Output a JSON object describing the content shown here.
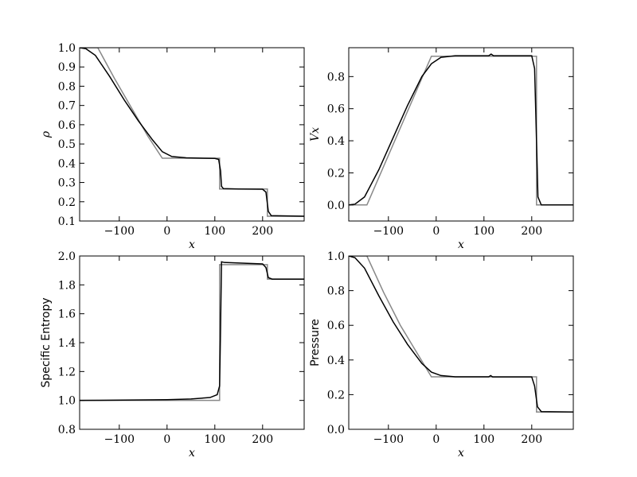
{
  "chart_data": [
    {
      "type": "line",
      "xlabel": "x",
      "ylabel": "ρ",
      "xlim": [
        -183,
        287
      ],
      "ylim": [
        0.1,
        1.0
      ],
      "xticks": [
        {
          "value": -100,
          "label": "−100"
        },
        0,
        100,
        200
      ],
      "yticks": [
        0.1,
        0.2,
        0.3,
        0.4,
        0.5,
        0.6,
        0.7,
        0.8,
        0.9,
        {
          "value": 1,
          "label": "1.0"
        }
      ],
      "series": [
        {
          "color": "#888888",
          "x": [
            -183,
            -145,
            -110,
            -75,
            -40,
            -10,
            110,
            110,
            210,
            210,
            287
          ],
          "values": [
            1,
            1,
            0.84,
            0.69,
            0.54,
            0.426,
            0.426,
            0.266,
            0.266,
            0.125,
            0.125
          ]
        },
        {
          "color": "#000000",
          "x": [
            -183,
            -170,
            -150,
            -120,
            -90,
            -60,
            -30,
            -10,
            10,
            40,
            100,
            108,
            112,
            114,
            118,
            150,
            200,
            207,
            212,
            218,
            287
          ],
          "values": [
            1,
            0.995,
            0.96,
            0.85,
            0.73,
            0.62,
            0.52,
            0.46,
            0.435,
            0.428,
            0.425,
            0.42,
            0.36,
            0.28,
            0.268,
            0.266,
            0.265,
            0.25,
            0.15,
            0.128,
            0.125
          ]
        }
      ]
    },
    {
      "type": "line",
      "xlabel": "x",
      "ylabel": "Vx",
      "xlim": [
        -183,
        287
      ],
      "ylim": [
        -0.1,
        0.98
      ],
      "xticks": [
        {
          "value": -100,
          "label": "−100"
        },
        0,
        100,
        200
      ],
      "yticks": [
        {
          "value": 0,
          "label": "0.0"
        },
        0.2,
        0.4,
        0.6,
        0.8
      ],
      "series": [
        {
          "color": "#888888",
          "x": [
            -183,
            -145,
            -10,
            210,
            210,
            287
          ],
          "values": [
            0,
            0,
            0.927,
            0.927,
            0,
            0
          ]
        },
        {
          "color": "#000000",
          "x": [
            -183,
            -170,
            -150,
            -120,
            -90,
            -60,
            -30,
            -10,
            10,
            40,
            110,
            115,
            120,
            200,
            206,
            210,
            213,
            220,
            287
          ],
          "values": [
            0,
            0.005,
            0.05,
            0.22,
            0.42,
            0.62,
            0.8,
            0.88,
            0.92,
            0.93,
            0.93,
            0.94,
            0.93,
            0.93,
            0.85,
            0.4,
            0.05,
            0,
            0
          ]
        }
      ]
    },
    {
      "type": "line",
      "xlabel": "x",
      "ylabel": "Specific Entropy",
      "xlim": [
        -183,
        287
      ],
      "ylim": [
        0.8,
        2.0
      ],
      "xticks": [
        {
          "value": -100,
          "label": "−100"
        },
        0,
        100,
        200
      ],
      "yticks": [
        0.8,
        {
          "value": 1,
          "label": "1.0"
        },
        1.2,
        1.4,
        1.6,
        1.8,
        {
          "value": 2,
          "label": "2.0"
        }
      ],
      "series": [
        {
          "color": "#888888",
          "x": [
            -183,
            110,
            110,
            210,
            210,
            287
          ],
          "values": [
            1.0,
            1.0,
            1.94,
            1.94,
            1.84,
            1.84
          ]
        },
        {
          "color": "#000000",
          "x": [
            -183,
            0,
            50,
            90,
            105,
            110,
            112,
            114,
            120,
            200,
            207,
            212,
            220,
            287
          ],
          "values": [
            1.0,
            1.005,
            1.01,
            1.02,
            1.04,
            1.1,
            1.5,
            1.96,
            1.955,
            1.945,
            1.92,
            1.85,
            1.84,
            1.84
          ]
        }
      ]
    },
    {
      "type": "line",
      "xlabel": "x",
      "ylabel": "Pressure",
      "xlim": [
        -183,
        287
      ],
      "ylim": [
        0,
        1.0
      ],
      "xticks": [
        {
          "value": -100,
          "label": "−100"
        },
        0,
        100,
        200
      ],
      "yticks": [
        {
          "value": 0,
          "label": "0.0"
        },
        0.2,
        0.4,
        0.6,
        0.8,
        {
          "value": 1,
          "label": "1.0"
        }
      ],
      "series": [
        {
          "color": "#888888",
          "x": [
            -183,
            -145,
            -110,
            -75,
            -40,
            -10,
            210,
            210,
            287
          ],
          "values": [
            1,
            1,
            0.79,
            0.6,
            0.44,
            0.303,
            0.303,
            0.1,
            0.1
          ]
        },
        {
          "color": "#000000",
          "x": [
            -183,
            -170,
            -150,
            -120,
            -90,
            -60,
            -30,
            -10,
            10,
            40,
            110,
            114,
            118,
            200,
            206,
            212,
            220,
            287
          ],
          "values": [
            1,
            0.99,
            0.93,
            0.77,
            0.62,
            0.49,
            0.38,
            0.33,
            0.31,
            0.303,
            0.303,
            0.31,
            0.302,
            0.302,
            0.25,
            0.13,
            0.102,
            0.1
          ]
        }
      ]
    }
  ]
}
